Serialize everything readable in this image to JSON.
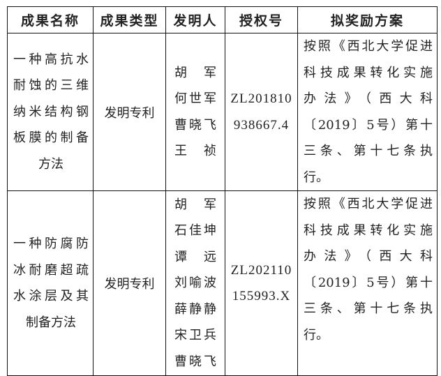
{
  "headers": [
    "成果名称",
    "成果类型",
    "发明人",
    "授权号",
    "拟奖励方案"
  ],
  "rows": [
    {
      "name_lines": [
        "一种高抗水",
        "耐蚀的三维",
        "纳米结构钢",
        "板膜的制备",
        "方法"
      ],
      "type": "发明专利",
      "inventors": [
        "胡　军",
        "何世军",
        "曹晓飞",
        "王　祯"
      ],
      "patent_lines": [
        "ZL201810",
        "938667.4"
      ],
      "plan_lines": [
        "按照《西北大学促进",
        "科技成果转化实施",
        "办法》（西大科",
        "〔2019〕5号）第十",
        "三条、第十七条执",
        "行。"
      ]
    },
    {
      "name_lines": [
        "一种防腐防",
        "冰耐磨超疏",
        "水涂层及其",
        "制备方法"
      ],
      "type": "发明专利",
      "inventors": [
        "胡　军",
        "石佳坤",
        "谭　远",
        "刘喻波",
        "薛静静",
        "宋卫兵",
        "曹晓飞"
      ],
      "patent_lines": [
        "ZL202110",
        "155993.X"
      ],
      "plan_lines": [
        "按照《西北大学促进",
        "科技成果转化实施",
        "办法》（西大科",
        "〔2019〕5号）第十",
        "三条、第十七条执",
        "行。"
      ]
    }
  ]
}
